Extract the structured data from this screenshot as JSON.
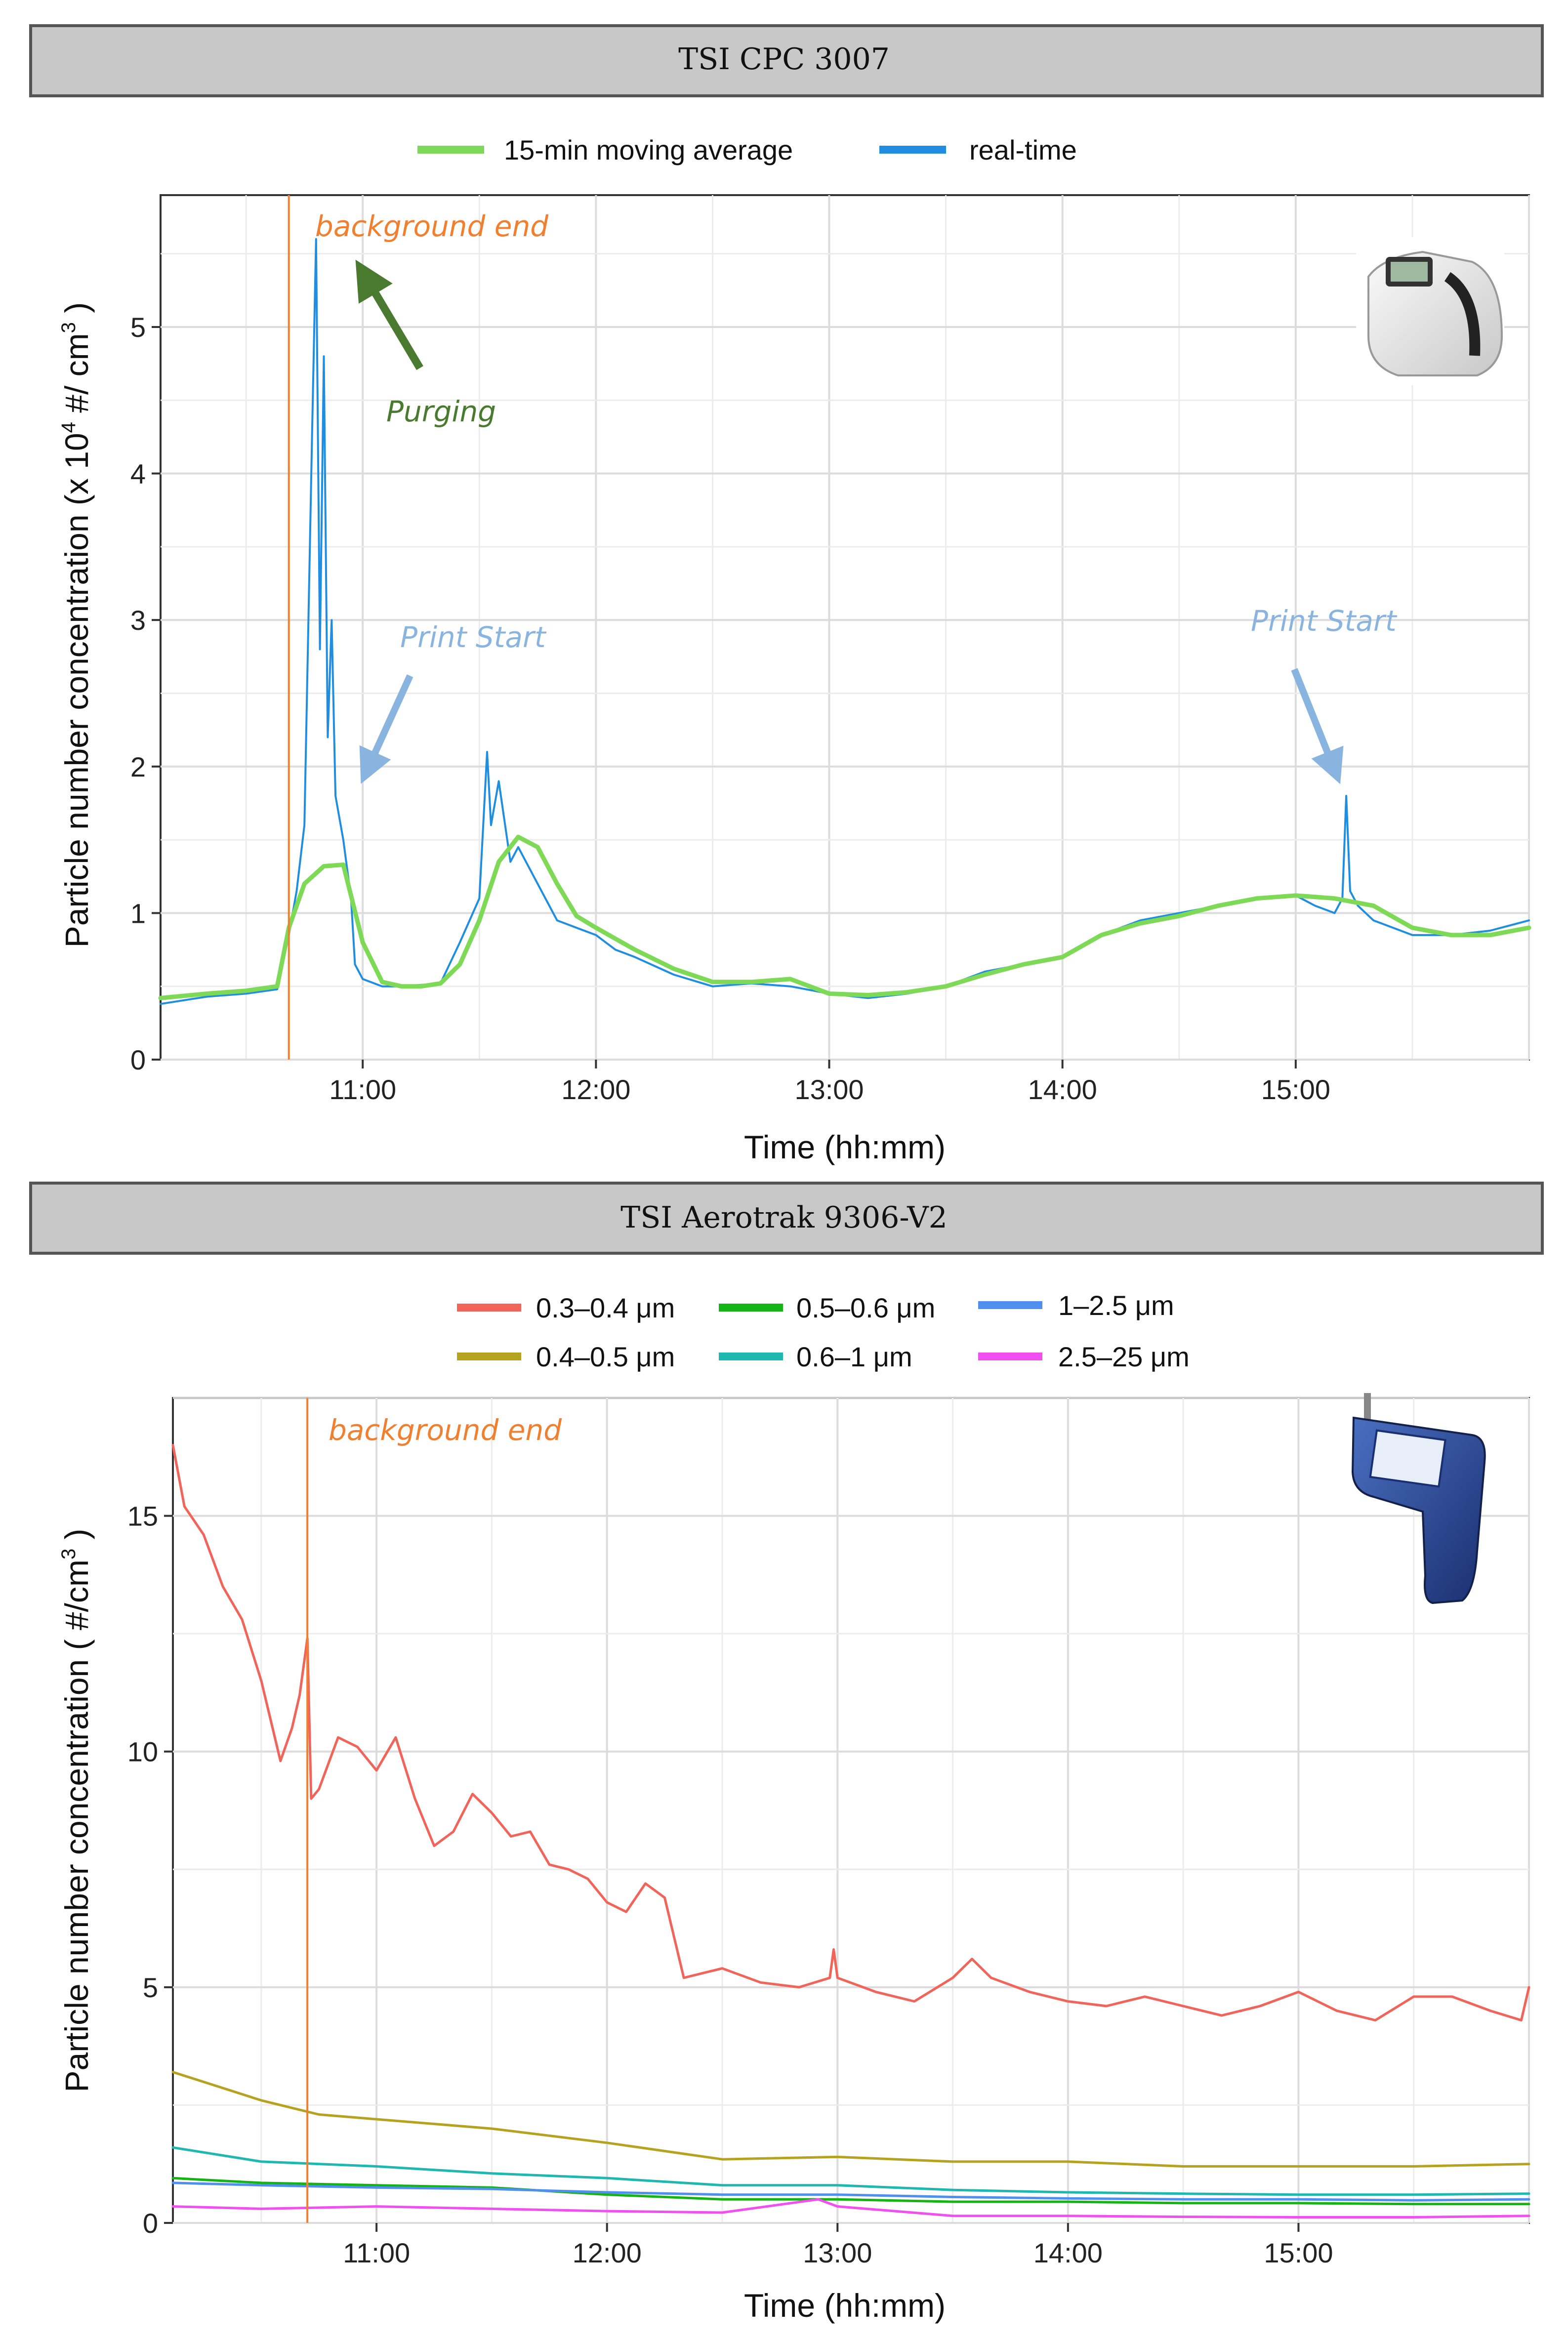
{
  "charts": [
    {
      "id": "cpc",
      "banner": "TSI CPC 3007",
      "device_icon": "cpc-device-icon",
      "colors": {
        "avg": "#7ed957",
        "rt": "#1f8ee0",
        "event": "#f08030"
      },
      "legend": [
        {
          "label": "15-min moving average",
          "color": "#7ed957"
        },
        {
          "label": "real-time",
          "color": "#1f8ee0"
        }
      ],
      "y_unit_prefix": "(x 10",
      "y_unit_exp": "4",
      "y_unit_mid": " #/ cm",
      "y_unit_exp2": "3",
      "y_unit_suffix": " )",
      "annotations": {
        "background_end": "background end",
        "purging": "Purging",
        "print_start_1": "Print Start",
        "print_start_2": "Print Start"
      }
    },
    {
      "id": "aero",
      "banner": "TSI Aerotrak 9306-V2",
      "device_icon": "aerotrak-device-icon",
      "y_unit_prefix": "( #/cm",
      "y_unit_exp": "3",
      "y_unit_suffix": " )",
      "annotations": {
        "background_end": "background end"
      }
    }
  ],
  "chart_data": [
    {
      "type": "line",
      "title": "TSI CPC 3007",
      "xlabel": "Time (hh:mm)",
      "ylabel": "Particle number concentration",
      "xlim": [
        "10:08",
        "16:00"
      ],
      "ylim": [
        0,
        5.9
      ],
      "x_ticks": [
        "11:00",
        "12:00",
        "13:00",
        "14:00",
        "15:00"
      ],
      "y_ticks": [
        "0",
        "1",
        "2",
        "3",
        "4",
        "5"
      ],
      "grid": true,
      "legend_position": "top",
      "background_end": "10:41",
      "series": [
        {
          "name": "15-min moving average",
          "x": [
            "10:08",
            "10:20",
            "10:30",
            "10:38",
            "10:41",
            "10:45",
            "10:50",
            "10:55",
            "11:00",
            "11:05",
            "11:10",
            "11:15",
            "11:20",
            "11:25",
            "11:30",
            "11:35",
            "11:40",
            "11:45",
            "11:50",
            "11:55",
            "12:00",
            "12:10",
            "12:20",
            "12:30",
            "12:40",
            "12:50",
            "13:00",
            "13:10",
            "13:20",
            "13:30",
            "13:40",
            "13:50",
            "14:00",
            "14:10",
            "14:20",
            "14:30",
            "14:40",
            "14:50",
            "15:00",
            "15:10",
            "15:20",
            "15:30",
            "15:40",
            "15:50",
            "16:00"
          ],
          "y": [
            0.42,
            0.45,
            0.47,
            0.5,
            0.9,
            1.2,
            1.32,
            1.33,
            0.8,
            0.53,
            0.5,
            0.5,
            0.52,
            0.65,
            0.95,
            1.35,
            1.52,
            1.45,
            1.2,
            0.98,
            0.9,
            0.75,
            0.62,
            0.53,
            0.53,
            0.55,
            0.45,
            0.44,
            0.46,
            0.5,
            0.58,
            0.65,
            0.7,
            0.85,
            0.93,
            0.98,
            1.05,
            1.1,
            1.12,
            1.1,
            1.05,
            0.9,
            0.85,
            0.85,
            0.9
          ]
        },
        {
          "name": "real-time",
          "x": [
            "10:08",
            "10:20",
            "10:30",
            "10:38",
            "10:41",
            "10:43",
            "10:45",
            "10:47",
            "10:48",
            "10:49",
            "10:50",
            "10:51",
            "10:52",
            "10:53",
            "10:55",
            "10:57",
            "10:58",
            "11:00",
            "11:05",
            "11:10",
            "11:20",
            "11:25",
            "11:30",
            "11:32",
            "11:33",
            "11:35",
            "11:38",
            "11:40",
            "11:43",
            "11:45",
            "11:50",
            "11:55",
            "12:00",
            "12:05",
            "12:10",
            "12:20",
            "12:30",
            "12:40",
            "12:50",
            "13:00",
            "13:10",
            "13:20",
            "13:30",
            "13:40",
            "13:50",
            "14:00",
            "14:10",
            "14:20",
            "14:30",
            "14:40",
            "14:50",
            "15:00",
            "15:05",
            "15:10",
            "15:12",
            "15:13",
            "15:14",
            "15:16",
            "15:20",
            "15:30",
            "15:40",
            "15:50",
            "16:00"
          ],
          "y": [
            0.38,
            0.43,
            0.45,
            0.48,
            0.85,
            1.15,
            1.6,
            4.3,
            5.6,
            2.8,
            4.8,
            2.2,
            3.0,
            1.8,
            1.5,
            1.1,
            0.65,
            0.55,
            0.5,
            0.5,
            0.52,
            0.8,
            1.1,
            2.1,
            1.6,
            1.9,
            1.35,
            1.45,
            1.3,
            1.2,
            0.95,
            0.9,
            0.85,
            0.75,
            0.7,
            0.58,
            0.5,
            0.52,
            0.5,
            0.45,
            0.42,
            0.45,
            0.5,
            0.6,
            0.65,
            0.7,
            0.85,
            0.95,
            1.0,
            1.05,
            1.1,
            1.12,
            1.05,
            1.0,
            1.1,
            1.8,
            1.15,
            1.05,
            0.95,
            0.85,
            0.85,
            0.88,
            0.95
          ]
        }
      ]
    },
    {
      "type": "line",
      "title": "TSI Aerotrak 9306-V2",
      "xlabel": "Time (hh:mm)",
      "ylabel": "Particle number concentration",
      "xlim": [
        "10:07",
        "16:00"
      ],
      "ylim": [
        0,
        17.5
      ],
      "x_ticks": [
        "11:00",
        "12:00",
        "13:00",
        "14:00",
        "15:00"
      ],
      "y_ticks": [
        "0",
        "5",
        "10",
        "15"
      ],
      "grid": true,
      "legend_position": "top",
      "background_end": "10:42",
      "series": [
        {
          "name": "0.3–0.4 μm",
          "color": "#f0645a",
          "x": [
            "10:07",
            "10:10",
            "10:15",
            "10:20",
            "10:25",
            "10:30",
            "10:35",
            "10:38",
            "10:40",
            "10:42",
            "10:43",
            "10:45",
            "10:50",
            "10:55",
            "11:00",
            "11:05",
            "11:10",
            "11:15",
            "11:20",
            "11:25",
            "11:30",
            "11:35",
            "11:40",
            "11:45",
            "11:50",
            "11:55",
            "12:00",
            "12:05",
            "12:10",
            "12:15",
            "12:20",
            "12:25",
            "12:30",
            "12:40",
            "12:50",
            "12:58",
            "12:59",
            "13:00",
            "13:10",
            "13:20",
            "13:30",
            "13:35",
            "13:40",
            "13:50",
            "14:00",
            "14:10",
            "14:20",
            "14:30",
            "14:40",
            "14:50",
            "15:00",
            "15:10",
            "15:20",
            "15:30",
            "15:40",
            "15:50",
            "15:58",
            "16:00"
          ],
          "y": [
            16.5,
            15.2,
            14.6,
            13.5,
            12.8,
            11.5,
            9.8,
            10.5,
            11.2,
            12.4,
            9.0,
            9.2,
            10.3,
            10.1,
            9.6,
            10.3,
            9.0,
            8.0,
            8.3,
            9.1,
            8.7,
            8.2,
            8.3,
            7.6,
            7.5,
            7.3,
            6.8,
            6.6,
            7.2,
            6.9,
            5.2,
            5.3,
            5.4,
            5.1,
            5.0,
            5.2,
            5.8,
            5.2,
            4.9,
            4.7,
            5.2,
            5.6,
            5.2,
            4.9,
            4.7,
            4.6,
            4.8,
            4.6,
            4.4,
            4.6,
            4.9,
            4.5,
            4.3,
            4.8,
            4.8,
            4.5,
            4.3,
            5.0
          ]
        },
        {
          "name": "0.4–0.5 μm",
          "color": "#b5a21f",
          "x": [
            "10:07",
            "10:30",
            "10:45",
            "11:00",
            "11:30",
            "12:00",
            "12:30",
            "13:00",
            "13:30",
            "14:00",
            "14:30",
            "15:00",
            "15:30",
            "16:00"
          ],
          "y": [
            3.2,
            2.6,
            2.3,
            2.2,
            2.0,
            1.7,
            1.35,
            1.4,
            1.3,
            1.3,
            1.2,
            1.2,
            1.2,
            1.25
          ]
        },
        {
          "name": "0.5–0.6 μm",
          "color": "#14b414",
          "x": [
            "10:07",
            "10:30",
            "11:00",
            "11:30",
            "12:00",
            "12:30",
            "13:00",
            "13:30",
            "14:00",
            "14:30",
            "15:00",
            "15:30",
            "16:00"
          ],
          "y": [
            0.95,
            0.85,
            0.8,
            0.75,
            0.6,
            0.5,
            0.5,
            0.45,
            0.45,
            0.42,
            0.42,
            0.4,
            0.4
          ]
        },
        {
          "name": "0.6–1 μm",
          "color": "#1eb8b0",
          "x": [
            "10:07",
            "10:30",
            "11:00",
            "11:30",
            "12:00",
            "12:30",
            "13:00",
            "13:30",
            "14:00",
            "14:30",
            "15:00",
            "15:30",
            "16:00"
          ],
          "y": [
            1.6,
            1.3,
            1.2,
            1.05,
            0.95,
            0.8,
            0.8,
            0.7,
            0.65,
            0.62,
            0.6,
            0.6,
            0.62
          ]
        },
        {
          "name": "1–2.5 μm",
          "color": "#4f8ff0",
          "x": [
            "10:07",
            "10:30",
            "11:00",
            "11:30",
            "12:00",
            "12:30",
            "13:00",
            "13:30",
            "14:00",
            "14:30",
            "15:00",
            "15:30",
            "16:00"
          ],
          "y": [
            0.85,
            0.8,
            0.75,
            0.72,
            0.65,
            0.6,
            0.6,
            0.55,
            0.52,
            0.5,
            0.5,
            0.48,
            0.5
          ]
        },
        {
          "name": "2.5–25 μm",
          "color": "#f050f0",
          "x": [
            "10:07",
            "10:30",
            "11:00",
            "11:30",
            "12:00",
            "12:30",
            "12:55",
            "13:00",
            "13:30",
            "14:00",
            "14:30",
            "15:00",
            "15:30",
            "16:00"
          ],
          "y": [
            0.35,
            0.3,
            0.35,
            0.3,
            0.25,
            0.22,
            0.5,
            0.35,
            0.15,
            0.15,
            0.13,
            0.12,
            0.12,
            0.15
          ]
        }
      ]
    }
  ]
}
